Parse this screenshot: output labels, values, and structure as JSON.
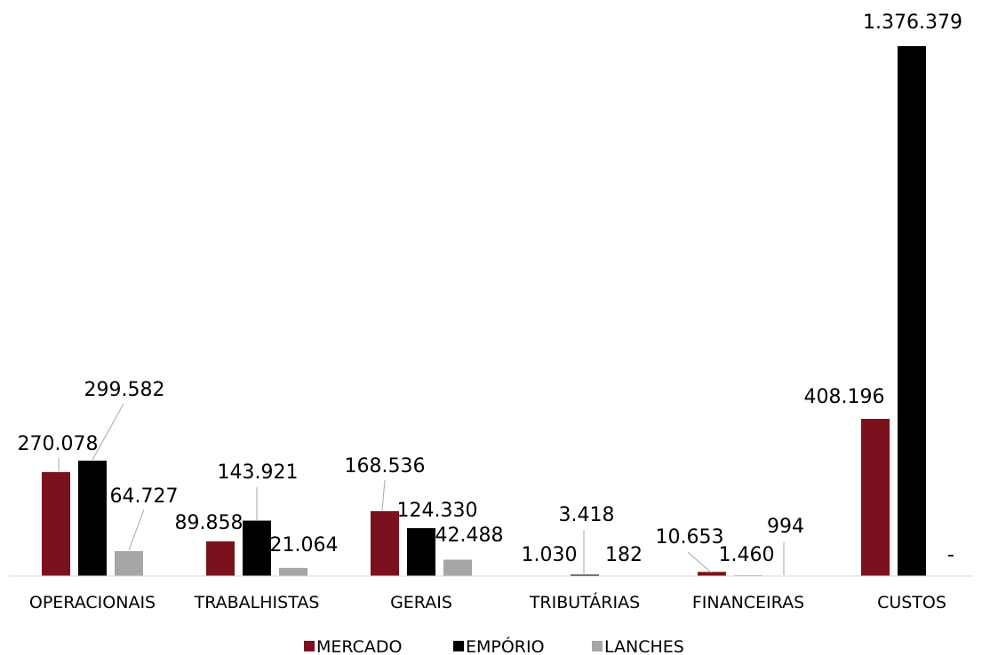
{
  "chart_data": {
    "type": "bar",
    "categories": [
      "OPERACIONAIS",
      "TRABALHISTAS",
      "GERAIS",
      "TRIBUTÁRIAS",
      "FINANCEIRAS",
      "CUSTOS"
    ],
    "series": [
      {
        "name": "MERCADO",
        "color": "#7b111c",
        "values": [
          270078,
          89858,
          168536,
          1030,
          10653,
          408196
        ],
        "labels": [
          "270.078",
          "89.858",
          "168.536",
          "1.030",
          "10.653",
          "408.196"
        ]
      },
      {
        "name": "EMPÓRIO",
        "color": "#000000",
        "values": [
          299582,
          143921,
          124330,
          3418,
          1460,
          1376379
        ],
        "labels": [
          "299.582",
          "143.921",
          "124.330",
          "3.418",
          "1.460",
          "1.376.379"
        ]
      },
      {
        "name": "LANCHES",
        "color": "#a6a6a6",
        "values": [
          64727,
          21064,
          42488,
          182,
          994,
          0
        ],
        "labels": [
          "64.727",
          "21.064",
          "42.488",
          "182",
          "994",
          "-"
        ]
      }
    ],
    "ylim": [
      0,
      1376379
    ],
    "legend_position": "bottom",
    "grid": false
  }
}
